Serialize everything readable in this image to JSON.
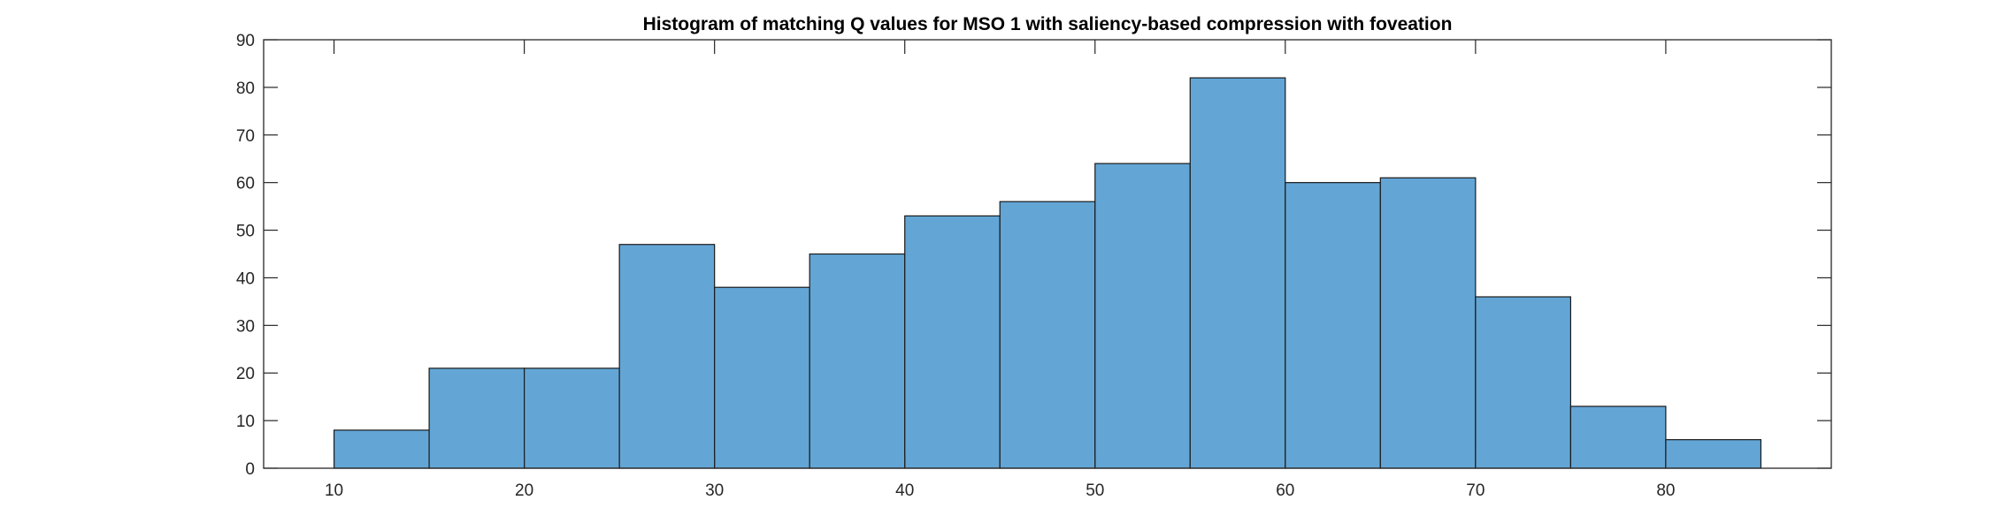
{
  "chart_data": {
    "type": "bar",
    "title": "Histogram of matching Q values for MSO 1 with saliency-based compression with foveation",
    "xlabel": "",
    "ylabel": "",
    "bin_edges": [
      10,
      15,
      20,
      25,
      30,
      35,
      40,
      45,
      50,
      55,
      60,
      65,
      70,
      75,
      80,
      85
    ],
    "values": [
      8,
      21,
      21,
      47,
      38,
      45,
      53,
      56,
      64,
      82,
      60,
      61,
      36,
      13,
      6
    ],
    "xlim": [
      6.3,
      88.7
    ],
    "ylim": [
      0,
      90
    ],
    "xticks": [
      10,
      20,
      30,
      40,
      50,
      60,
      70,
      80
    ],
    "yticks": [
      0,
      10,
      20,
      30,
      40,
      50,
      60,
      70,
      80,
      90
    ],
    "grid": false,
    "bar_color": "#63a6d6",
    "edge_color": "#1a1a1a",
    "axis_color": "#262626"
  }
}
